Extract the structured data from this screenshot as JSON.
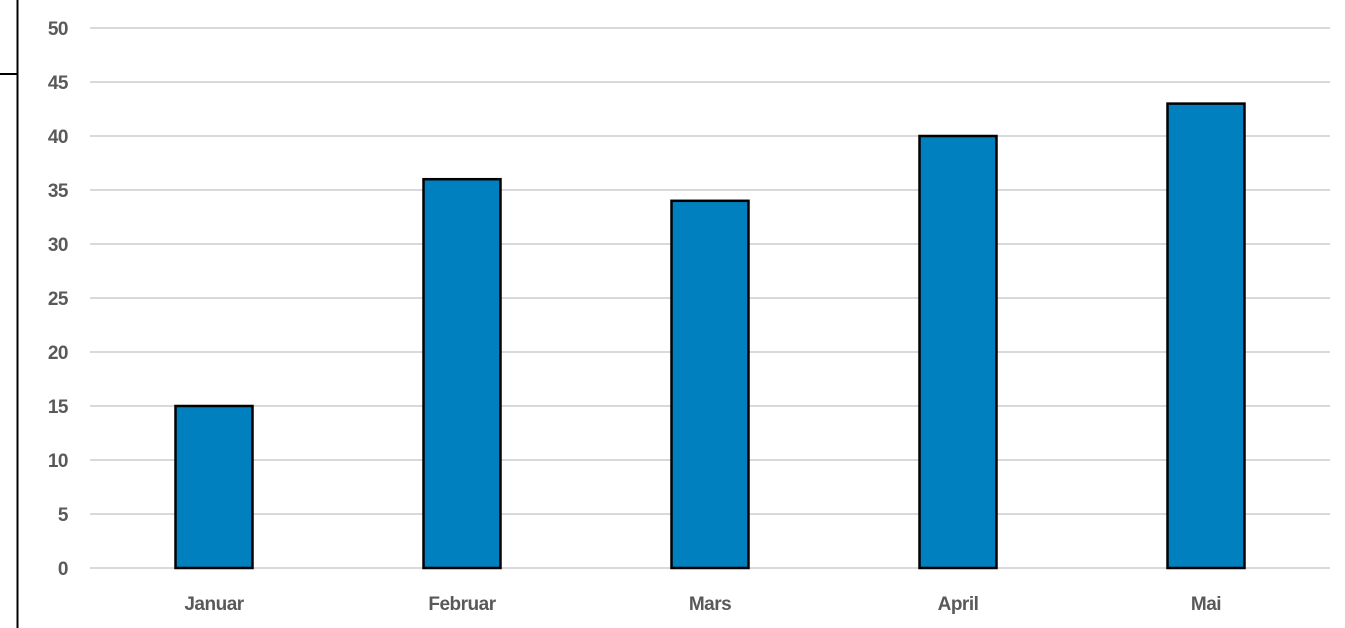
{
  "chart_data": {
    "type": "bar",
    "title": "",
    "xlabel": "",
    "ylabel": "",
    "categories": [
      "Januar",
      "Februar",
      "Mars",
      "April",
      "Mai"
    ],
    "values": [
      15,
      36,
      34,
      40,
      43
    ],
    "ylim": [
      0,
      50
    ],
    "y_ticks": [
      0,
      5,
      10,
      15,
      20,
      25,
      30,
      35,
      40,
      45,
      50
    ],
    "grid": true,
    "legend": "none",
    "colors": {
      "bar_fill": "#0080BE",
      "bar_stroke": "#000000",
      "gridline": "#D9D9D9",
      "tick_text": "#595959",
      "frame": "#000000"
    }
  }
}
